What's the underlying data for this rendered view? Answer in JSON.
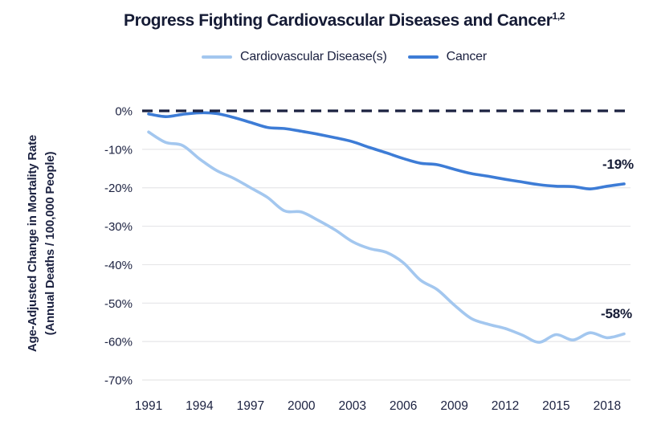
{
  "title": {
    "text": "Progress Fighting Cardiovascular Diseases and Cancer",
    "superscript": "1,2"
  },
  "legend": {
    "items": [
      {
        "label": "Cardiovascular Disease(s)",
        "color": "#a3c7ef"
      },
      {
        "label": "Cancer",
        "color": "#3d7cd6"
      }
    ]
  },
  "y_axis": {
    "title_line1": "Age-Adjusted Change in Mortality Rate",
    "title_line2": "(Annual Deaths / 100,000 People)",
    "ticks": [
      "0%",
      "-10%",
      "-20%",
      "-30%",
      "-40%",
      "-50%",
      "-60%",
      "-70%"
    ]
  },
  "x_axis": {
    "ticks": [
      "1991",
      "1994",
      "1997",
      "2000",
      "2003",
      "2006",
      "2009",
      "2012",
      "2015",
      "2018"
    ]
  },
  "annotations": {
    "cancer_end": "-19%",
    "cvd_end": "-58%"
  },
  "colors": {
    "text": "#1b2140",
    "grid": "#e6e6e8",
    "zero_line": "#1b2140",
    "cvd_line": "#a3c7ef",
    "cancer_line": "#3d7cd6"
  },
  "chart_data": {
    "type": "line",
    "title": "Progress Fighting Cardiovascular Diseases and Cancer",
    "xlabel": "",
    "ylabel": "Age-Adjusted Change in Mortality Rate (Annual Deaths / 100,000 People)",
    "ylim": [
      -70,
      0
    ],
    "grid": true,
    "zero_line": "dashed",
    "legend_position": "top",
    "x": [
      1991,
      1992,
      1993,
      1994,
      1995,
      1996,
      1997,
      1998,
      1999,
      2000,
      2001,
      2002,
      2003,
      2004,
      2005,
      2006,
      2007,
      2008,
      2009,
      2010,
      2011,
      2012,
      2013,
      2014,
      2015,
      2016,
      2017,
      2018,
      2019
    ],
    "series": [
      {
        "name": "Cardiovascular Disease(s)",
        "color": "#a3c7ef",
        "end_label": "-58%",
        "values": [
          -5.5,
          -8.2,
          -9.0,
          -12.5,
          -15.5,
          -17.5,
          -20.0,
          -22.5,
          -26.0,
          -26.3,
          -28.5,
          -31.0,
          -34.0,
          -35.8,
          -36.8,
          -39.5,
          -44.0,
          -46.5,
          -50.5,
          -54.0,
          -55.5,
          -56.6,
          -58.3,
          -60.2,
          -58.2,
          -59.6,
          -57.7,
          -59.0,
          -58.0
        ]
      },
      {
        "name": "Cancer",
        "color": "#3d7cd6",
        "end_label": "-19%",
        "values": [
          -0.8,
          -1.5,
          -0.9,
          -0.5,
          -0.7,
          -1.7,
          -3.0,
          -4.3,
          -4.6,
          -5.3,
          -6.1,
          -7.0,
          -8.0,
          -9.5,
          -10.9,
          -12.4,
          -13.6,
          -14.0,
          -15.2,
          -16.3,
          -17.0,
          -17.8,
          -18.5,
          -19.2,
          -19.6,
          -19.7,
          -20.3,
          -19.6,
          -19.0
        ]
      }
    ]
  }
}
